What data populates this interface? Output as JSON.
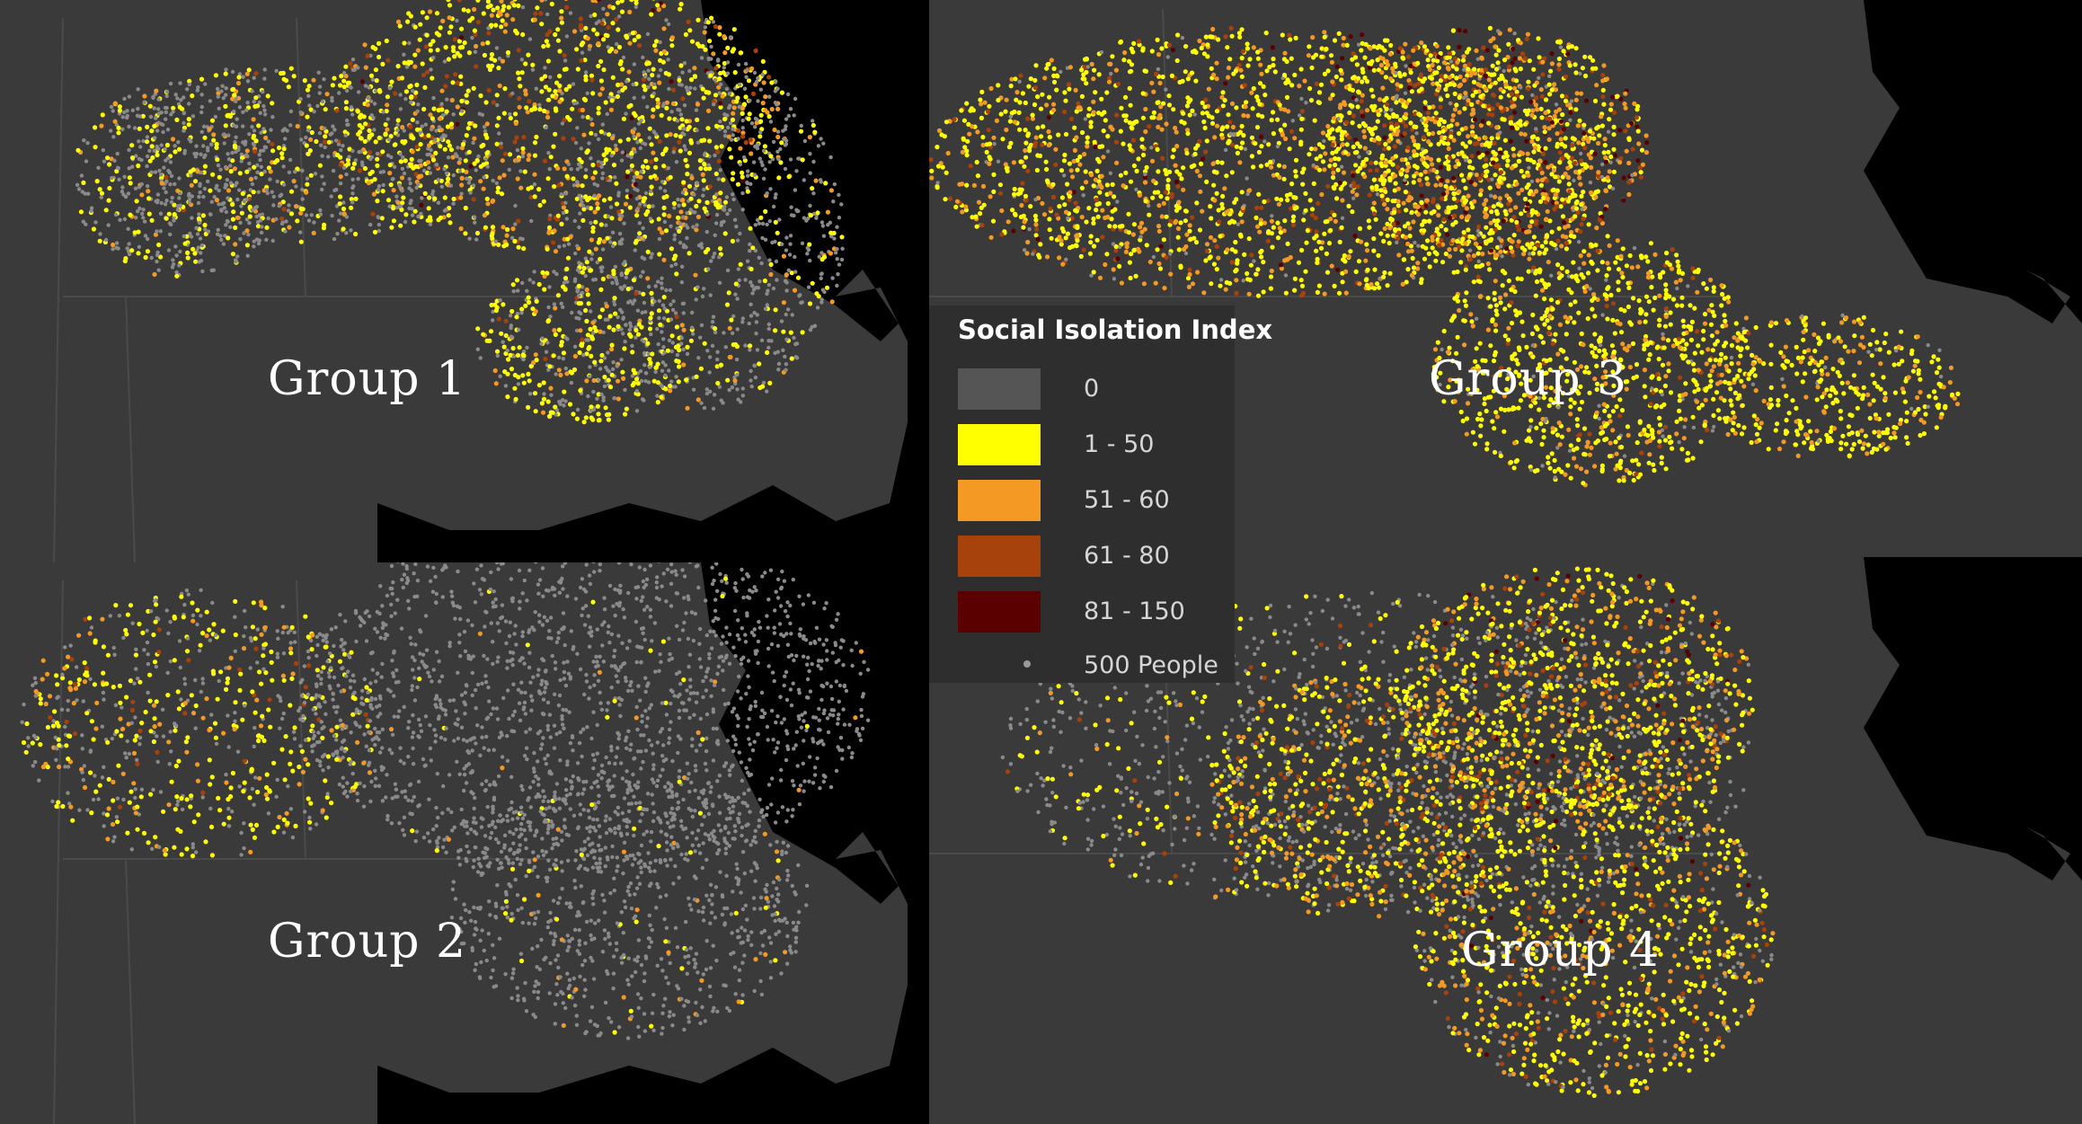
{
  "legend": {
    "title": "Social Isolation Index",
    "classes": [
      {
        "label": "0",
        "color": "#555555"
      },
      {
        "label": "1 - 50",
        "color": "#ffff00"
      },
      {
        "label": "51 - 60",
        "color": "#f49a24"
      },
      {
        "label": "61 - 80",
        "color": "#a8420c"
      },
      {
        "label": "81 - 150",
        "color": "#5a0000"
      }
    ],
    "dot_label": "500 People"
  },
  "panels": [
    {
      "id": "g1",
      "label": "Group 1"
    },
    {
      "id": "g2",
      "label": "Group 2"
    },
    {
      "id": "g3",
      "label": "Group 3"
    },
    {
      "id": "g4",
      "label": "Group 4"
    }
  ],
  "colors": {
    "background": "#2f2f2f",
    "land": "#3a3a3a",
    "ocean": "#000000",
    "state_border": "#4a4a4a",
    "dot_zero": "#8a8a8a"
  }
}
